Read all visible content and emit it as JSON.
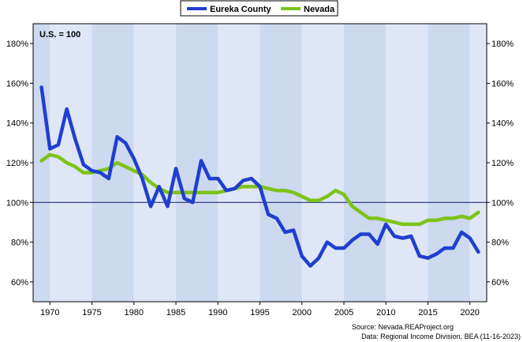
{
  "chart_data": {
    "type": "line",
    "annotation": "U.S. = 100",
    "xlim": [
      1968,
      2022
    ],
    "ylim": [
      50,
      190
    ],
    "x_ticks": [
      1970,
      1975,
      1980,
      1985,
      1990,
      1995,
      2000,
      2005,
      2010,
      2015,
      2020
    ],
    "y_ticks": [
      60,
      80,
      100,
      120,
      140,
      160,
      180
    ],
    "y_tick_labels": [
      "60%",
      "80%",
      "100%",
      "120%",
      "140%",
      "160%",
      "180%"
    ],
    "reference_line": 100,
    "legend_position": "top-center",
    "grid": false,
    "series": [
      {
        "name": "Eureka County",
        "color": "#1f3fd0",
        "x": [
          1969,
          1970,
          1971,
          1972,
          1973,
          1974,
          1975,
          1976,
          1977,
          1978,
          1979,
          1980,
          1981,
          1982,
          1983,
          1984,
          1985,
          1986,
          1987,
          1988,
          1989,
          1990,
          1991,
          1992,
          1993,
          1994,
          1995,
          1996,
          1997,
          1998,
          1999,
          2000,
          2001,
          2002,
          2003,
          2004,
          2005,
          2006,
          2007,
          2008,
          2009,
          2010,
          2011,
          2012,
          2013,
          2014,
          2015,
          2016,
          2017,
          2018,
          2019,
          2020,
          2021
        ],
        "y": [
          158,
          127,
          129,
          147,
          132,
          119,
          116,
          115,
          112,
          133,
          130,
          122,
          112,
          98,
          108,
          98,
          117,
          102,
          100,
          121,
          112,
          112,
          106,
          107,
          111,
          112,
          108,
          94,
          92,
          85,
          86,
          73,
          68,
          72,
          80,
          77,
          77,
          81,
          84,
          84,
          79,
          89,
          83,
          82,
          83,
          73,
          72,
          74,
          77,
          77,
          85,
          82,
          75
        ]
      },
      {
        "name": "Nevada",
        "color": "#7dc31a",
        "x": [
          1969,
          1970,
          1971,
          1972,
          1973,
          1974,
          1975,
          1976,
          1977,
          1978,
          1979,
          1980,
          1981,
          1982,
          1983,
          1984,
          1985,
          1986,
          1987,
          1988,
          1989,
          1990,
          1991,
          1992,
          1993,
          1994,
          1995,
          1996,
          1997,
          1998,
          1999,
          2000,
          2001,
          2002,
          2003,
          2004,
          2005,
          2006,
          2007,
          2008,
          2009,
          2010,
          2011,
          2012,
          2013,
          2014,
          2015,
          2016,
          2017,
          2018,
          2019,
          2020,
          2021
        ],
        "y": [
          121,
          124,
          123,
          120,
          118,
          115,
          115,
          116,
          117,
          120,
          118,
          116,
          114,
          110,
          107,
          105,
          105,
          105,
          105,
          105,
          105,
          105,
          106,
          107,
          108,
          108,
          108,
          107,
          106,
          106,
          105,
          103,
          101,
          101,
          103,
          106,
          104,
          98,
          95,
          92,
          92,
          91,
          90,
          89,
          89,
          89,
          91,
          91,
          92,
          92,
          93,
          92,
          95
        ]
      }
    ]
  },
  "legend": {
    "items": [
      "Eureka County",
      "Nevada"
    ]
  },
  "footer": {
    "source": "Source: Nevada.REAProject.org",
    "data": "Data: Regional Income Division, BEA (11-16-2023)"
  }
}
